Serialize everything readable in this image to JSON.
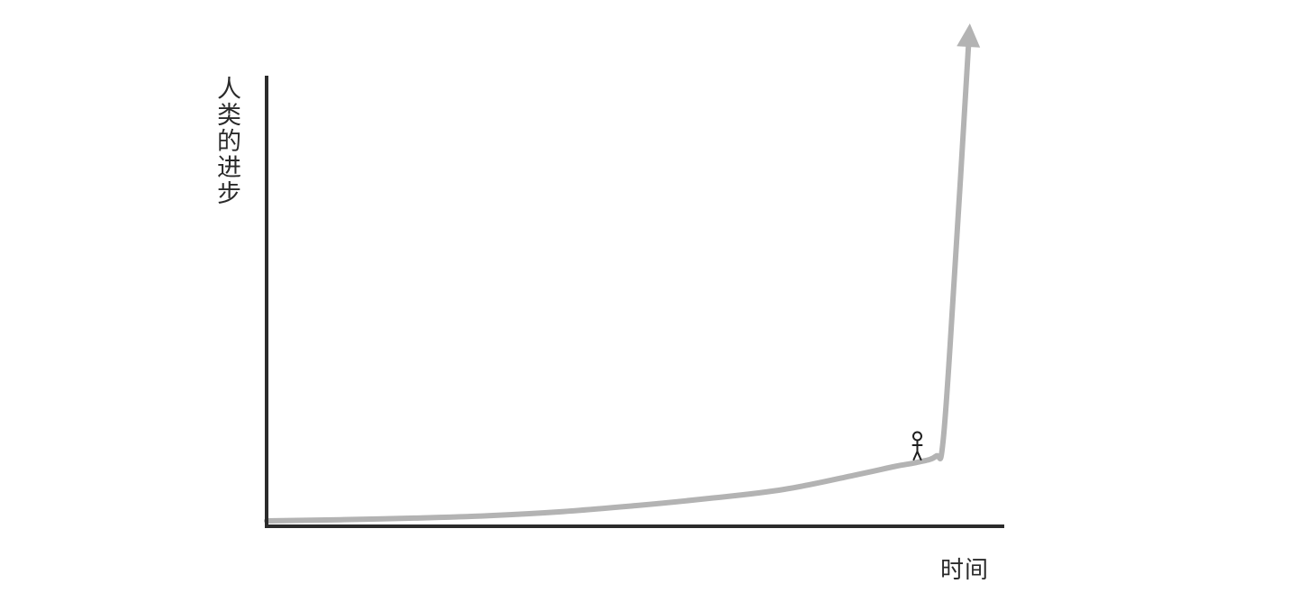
{
  "chart_data": {
    "type": "line",
    "title": "",
    "xlabel": "时间",
    "ylabel": "人类的进步",
    "grid": false,
    "legend": "none",
    "x": [
      0,
      10,
      20,
      30,
      40,
      50,
      60,
      70,
      80,
      85,
      88,
      90.5,
      91.5,
      93,
      95
    ],
    "values": [
      0,
      0.3,
      0.7,
      1.3,
      2.3,
      3.8,
      5.6,
      7.8,
      11.5,
      13.5,
      14.5,
      16,
      20,
      60,
      120
    ],
    "ylim": [
      0,
      120
    ],
    "xlim": [
      0,
      100
    ],
    "line_color": "#b3b3b3",
    "axis_color": "#2b2b2b",
    "marker": {
      "type": "stick-figure",
      "x": 88,
      "y": 14.5,
      "icon": "person-icon"
    }
  }
}
